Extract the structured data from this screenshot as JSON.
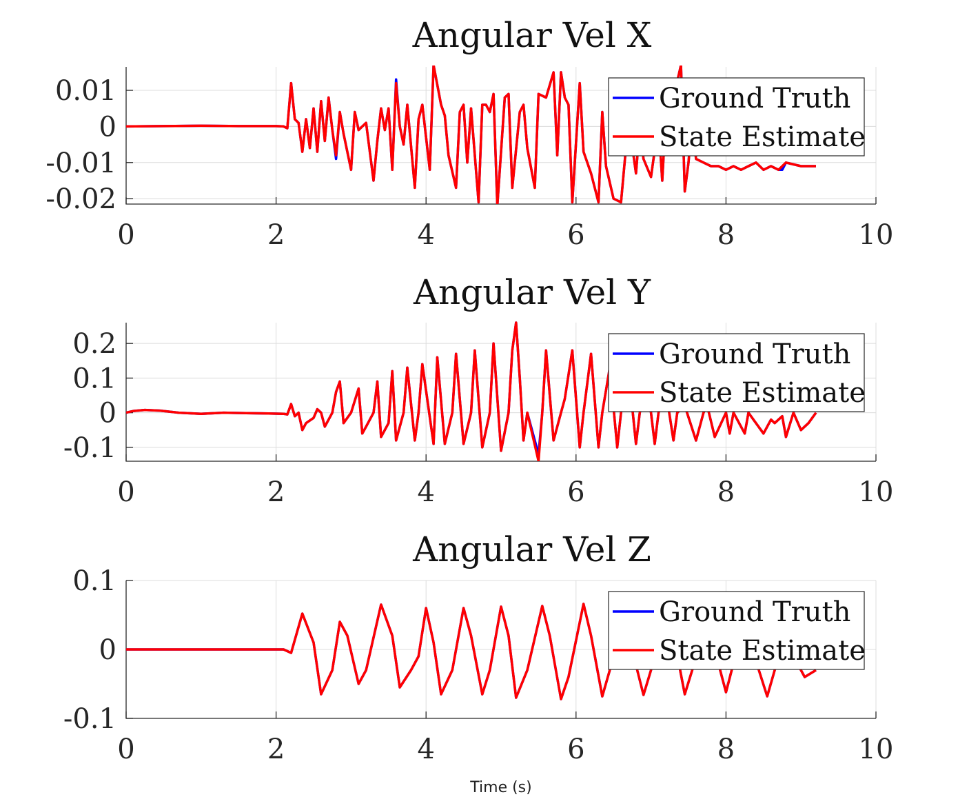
{
  "figure": {
    "xlabel": "Time (s)"
  },
  "colors": {
    "ground_truth": "#0000ff",
    "state_estimate": "#ff0000",
    "grid": "#dcdcdc",
    "axis": "#262626"
  },
  "legend": {
    "items": [
      "Ground Truth",
      "State Estimate"
    ],
    "position": "top-right"
  },
  "chart_data": [
    {
      "type": "line",
      "title": "Angular Vel X",
      "xlim": [
        0,
        10
      ],
      "ylim": [
        -0.0215,
        0.0165
      ],
      "xticks": [
        0,
        2,
        4,
        6,
        8,
        10
      ],
      "xtick_labels": [
        "0",
        "2",
        "4",
        "6",
        "8",
        "10"
      ],
      "yticks": [
        0.01,
        0,
        -0.01,
        -0.02
      ],
      "ytick_labels": [
        "0.01",
        "0",
        "-0.01",
        "-0.02"
      ],
      "grid": true,
      "legend": "top-right",
      "x": [
        0,
        0.5,
        1.0,
        1.5,
        2.0,
        2.1,
        2.15,
        2.2,
        2.25,
        2.3,
        2.35,
        2.4,
        2.45,
        2.5,
        2.55,
        2.6,
        2.65,
        2.7,
        2.75,
        2.8,
        2.85,
        2.9,
        3.0,
        3.05,
        3.1,
        3.15,
        3.2,
        3.3,
        3.35,
        3.4,
        3.45,
        3.5,
        3.55,
        3.6,
        3.65,
        3.7,
        3.75,
        3.85,
        3.9,
        3.95,
        4.05,
        4.1,
        4.2,
        4.25,
        4.3,
        4.4,
        4.45,
        4.5,
        4.55,
        4.6,
        4.7,
        4.75,
        4.8,
        4.85,
        4.9,
        4.95,
        5.05,
        5.1,
        5.15,
        5.25,
        5.3,
        5.35,
        5.45,
        5.5,
        5.6,
        5.7,
        5.75,
        5.8,
        5.85,
        5.9,
        5.95,
        6.05,
        6.1,
        6.2,
        6.3,
        6.35,
        6.4,
        6.5,
        6.6,
        6.7,
        6.8,
        6.85,
        6.9,
        7.0,
        7.1,
        7.15,
        7.2,
        7.3,
        7.4,
        7.45,
        7.5,
        7.55,
        7.6,
        7.7,
        7.8,
        7.9,
        8.0,
        8.1,
        8.2,
        8.3,
        8.4,
        8.5,
        8.6,
        8.7,
        8.75,
        8.8,
        9.0,
        9.2
      ],
      "series": [
        {
          "name": "Ground Truth",
          "values": [
            0,
            0.0001,
            0.0002,
            0.0001,
            0.0001,
            0.0,
            -0.0005,
            0.012,
            0.002,
            0.001,
            -0.007,
            0.002,
            -0.006,
            0.005,
            -0.007,
            0.007,
            -0.004,
            0.008,
            -0.001,
            -0.009,
            0.004,
            -0.002,
            -0.012,
            0.004,
            -0.001,
            0.0,
            0.001,
            -0.015,
            -0.004,
            0.005,
            -0.001,
            0.005,
            -0.012,
            0.013,
            0.0,
            -0.005,
            0.006,
            -0.017,
            0.002,
            0.006,
            -0.012,
            0.017,
            0.006,
            0.003,
            -0.008,
            -0.017,
            0.004,
            0.006,
            -0.01,
            0.005,
            -0.021,
            0.006,
            0.006,
            0.004,
            0.009,
            -0.022,
            0.008,
            0.009,
            -0.017,
            0.004,
            0.006,
            -0.006,
            -0.017,
            0.009,
            0.008,
            0.015,
            -0.008,
            0.015,
            0.008,
            0.006,
            -0.021,
            0.012,
            -0.007,
            -0.013,
            -0.021,
            0.004,
            -0.011,
            -0.02,
            -0.021,
            0.002,
            -0.013,
            0.0,
            -0.009,
            -0.014,
            0.001,
            -0.015,
            0.004,
            0.008,
            0.017,
            -0.018,
            -0.01,
            0.002,
            -0.009,
            -0.01,
            -0.011,
            -0.011,
            -0.012,
            -0.011,
            -0.012,
            -0.011,
            -0.01,
            -0.012,
            -0.011,
            -0.012,
            -0.012,
            -0.01,
            -0.011,
            -0.011
          ]
        },
        {
          "name": "State Estimate",
          "values": [
            0,
            0.0001,
            0.0002,
            0.0001,
            0.0001,
            0.0,
            -0.0005,
            0.012,
            0.002,
            0.001,
            -0.007,
            0.002,
            -0.006,
            0.005,
            -0.007,
            0.007,
            -0.004,
            0.008,
            -0.001,
            -0.008,
            0.004,
            -0.002,
            -0.012,
            0.004,
            -0.001,
            0.0,
            0.001,
            -0.015,
            -0.004,
            0.005,
            -0.001,
            0.005,
            -0.012,
            0.012,
            0.0,
            -0.005,
            0.006,
            -0.017,
            0.002,
            0.006,
            -0.012,
            0.017,
            0.006,
            0.003,
            -0.008,
            -0.017,
            0.004,
            0.006,
            -0.01,
            0.005,
            -0.021,
            0.006,
            0.006,
            0.004,
            0.009,
            -0.022,
            0.008,
            0.009,
            -0.017,
            0.004,
            0.006,
            -0.006,
            -0.017,
            0.009,
            0.008,
            0.015,
            -0.008,
            0.015,
            0.008,
            0.006,
            -0.021,
            0.012,
            -0.007,
            -0.013,
            -0.021,
            0.004,
            -0.011,
            -0.02,
            -0.021,
            0.002,
            -0.013,
            0.0,
            -0.009,
            -0.014,
            0.001,
            -0.015,
            0.004,
            0.008,
            0.017,
            -0.018,
            -0.01,
            0.002,
            -0.009,
            -0.01,
            -0.011,
            -0.011,
            -0.012,
            -0.011,
            -0.012,
            -0.011,
            -0.01,
            -0.012,
            -0.011,
            -0.012,
            -0.011,
            -0.01,
            -0.011,
            -0.011
          ]
        }
      ]
    },
    {
      "type": "line",
      "title": "Angular Vel Y",
      "xlim": [
        0,
        10
      ],
      "ylim": [
        -0.14,
        0.26
      ],
      "xticks": [
        0,
        2,
        4,
        6,
        8,
        10
      ],
      "xtick_labels": [
        "0",
        "2",
        "4",
        "6",
        "8",
        "10"
      ],
      "yticks": [
        0.2,
        0.1,
        0,
        -0.1
      ],
      "ytick_labels": [
        "0.2",
        "0.1",
        "0",
        "-0.1"
      ],
      "grid": true,
      "legend": "top-right",
      "x": [
        0,
        0.1,
        0.25,
        0.45,
        0.7,
        1.0,
        1.3,
        1.6,
        1.9,
        2.1,
        2.15,
        2.2,
        2.25,
        2.3,
        2.35,
        2.4,
        2.5,
        2.55,
        2.6,
        2.65,
        2.7,
        2.75,
        2.8,
        2.85,
        2.9,
        3.0,
        3.1,
        3.15,
        3.2,
        3.3,
        3.35,
        3.4,
        3.5,
        3.55,
        3.6,
        3.7,
        3.75,
        3.85,
        3.9,
        3.95,
        4.1,
        4.15,
        4.25,
        4.35,
        4.4,
        4.5,
        4.6,
        4.65,
        4.75,
        4.85,
        4.9,
        5.0,
        5.1,
        5.15,
        5.2,
        5.25,
        5.3,
        5.35,
        5.5,
        5.55,
        5.6,
        5.7,
        5.8,
        5.85,
        5.95,
        6.05,
        6.1,
        6.2,
        6.3,
        6.35,
        6.45,
        6.55,
        6.6,
        6.7,
        6.8,
        6.85,
        6.95,
        7.05,
        7.1,
        7.2,
        7.3,
        7.35,
        7.45,
        7.6,
        7.7,
        7.75,
        7.85,
        8.0,
        8.05,
        8.1,
        8.25,
        8.3,
        8.5,
        8.6,
        8.65,
        8.75,
        8.8,
        8.9,
        9.0,
        9.1,
        9.2
      ],
      "series": [
        {
          "name": "Ground Truth",
          "values": [
            0.0,
            0.005,
            0.008,
            0.006,
            0.0,
            -0.003,
            0.0,
            -0.001,
            -0.002,
            -0.003,
            -0.005,
            0.025,
            -0.01,
            0.0,
            -0.05,
            -0.03,
            -0.015,
            0.01,
            0.0,
            -0.04,
            -0.02,
            0.0,
            0.06,
            0.09,
            -0.03,
            0.0,
            0.07,
            -0.06,
            -0.04,
            0.0,
            0.09,
            -0.07,
            -0.03,
            0.12,
            -0.08,
            0.0,
            0.13,
            -0.08,
            0.0,
            0.14,
            -0.09,
            0.16,
            -0.09,
            0.0,
            0.17,
            -0.09,
            0.0,
            0.18,
            -0.1,
            0.0,
            0.2,
            -0.11,
            0.0,
            0.18,
            0.26,
            0.1,
            -0.08,
            0.0,
            -0.12,
            0.0,
            0.18,
            -0.08,
            0.0,
            0.04,
            0.18,
            -0.1,
            0.0,
            0.17,
            -0.1,
            0.0,
            0.13,
            -0.1,
            0.0,
            0.12,
            -0.09,
            0.0,
            0.09,
            -0.09,
            0.0,
            0.06,
            -0.08,
            0.0,
            0.02,
            -0.08,
            0.0,
            0.02,
            -0.07,
            0.0,
            -0.06,
            0.0,
            -0.06,
            0.0,
            -0.06,
            -0.02,
            -0.03,
            -0.01,
            -0.07,
            0.0,
            -0.05,
            -0.03,
            0.0
          ]
        },
        {
          "name": "State Estimate",
          "values": [
            0.0,
            0.005,
            0.008,
            0.006,
            0.0,
            -0.003,
            0.0,
            -0.001,
            -0.002,
            -0.003,
            -0.005,
            0.025,
            -0.01,
            0.0,
            -0.05,
            -0.03,
            -0.015,
            0.01,
            0.0,
            -0.04,
            -0.02,
            0.0,
            0.06,
            0.09,
            -0.03,
            0.0,
            0.07,
            -0.06,
            -0.04,
            0.0,
            0.09,
            -0.07,
            -0.03,
            0.12,
            -0.08,
            0.0,
            0.13,
            -0.08,
            0.0,
            0.14,
            -0.09,
            0.16,
            -0.09,
            0.0,
            0.17,
            -0.09,
            0.0,
            0.18,
            -0.1,
            0.0,
            0.2,
            -0.11,
            0.0,
            0.18,
            0.26,
            0.1,
            -0.08,
            0.0,
            -0.14,
            0.0,
            0.18,
            -0.08,
            0.0,
            0.04,
            0.18,
            -0.1,
            0.0,
            0.17,
            -0.1,
            0.0,
            0.13,
            -0.1,
            0.0,
            0.12,
            -0.09,
            0.0,
            0.09,
            -0.09,
            0.0,
            0.06,
            -0.08,
            0.0,
            0.02,
            -0.08,
            0.0,
            0.02,
            -0.07,
            0.0,
            -0.06,
            0.0,
            -0.06,
            0.0,
            -0.06,
            -0.02,
            -0.03,
            -0.01,
            -0.07,
            0.0,
            -0.05,
            -0.03,
            0.0
          ]
        }
      ]
    },
    {
      "type": "line",
      "title": "Angular Vel Z",
      "xlim": [
        0,
        10
      ],
      "ylim": [
        -0.1,
        0.1
      ],
      "xticks": [
        0,
        2,
        4,
        6,
        8,
        10
      ],
      "xtick_labels": [
        "0",
        "2",
        "4",
        "6",
        "8",
        "10"
      ],
      "yticks": [
        0.1,
        0,
        -0.1
      ],
      "ytick_labels": [
        "0.1",
        "0",
        "-0.1"
      ],
      "grid": true,
      "legend": "top-right",
      "x": [
        0,
        1.0,
        2.0,
        2.1,
        2.2,
        2.35,
        2.5,
        2.6,
        2.75,
        2.85,
        2.95,
        3.1,
        3.2,
        3.4,
        3.55,
        3.65,
        3.8,
        3.9,
        4.0,
        4.1,
        4.2,
        4.35,
        4.5,
        4.6,
        4.75,
        4.85,
        5.0,
        5.1,
        5.2,
        5.35,
        5.55,
        5.65,
        5.8,
        5.9,
        6.1,
        6.2,
        6.35,
        6.45,
        6.6,
        6.7,
        6.9,
        7.0,
        7.2,
        7.3,
        7.45,
        7.55,
        7.7,
        7.8,
        8.0,
        8.1,
        8.25,
        8.35,
        8.55,
        8.65,
        8.8,
        9.05,
        9.2
      ],
      "series": [
        {
          "name": "Ground Truth",
          "values": [
            0,
            0,
            0,
            0,
            -0.005,
            0.052,
            0.01,
            -0.065,
            -0.03,
            0.04,
            0.02,
            -0.05,
            -0.03,
            0.065,
            0.02,
            -0.055,
            -0.03,
            -0.01,
            0.06,
            0.01,
            -0.065,
            -0.03,
            0.06,
            0.02,
            -0.065,
            -0.03,
            0.062,
            0.02,
            -0.07,
            -0.03,
            0.063,
            0.02,
            -0.072,
            -0.04,
            0.066,
            0.02,
            -0.068,
            -0.03,
            0.065,
            0.02,
            -0.066,
            -0.03,
            0.06,
            0.02,
            -0.065,
            -0.03,
            0.055,
            0.02,
            -0.062,
            -0.02,
            0.05,
            0.0,
            -0.068,
            -0.03,
            0.01,
            -0.04,
            -0.03
          ]
        },
        {
          "name": "State Estimate",
          "values": [
            0,
            0,
            0,
            0,
            -0.005,
            0.052,
            0.01,
            -0.065,
            -0.03,
            0.04,
            0.02,
            -0.05,
            -0.03,
            0.065,
            0.02,
            -0.055,
            -0.03,
            -0.01,
            0.06,
            0.01,
            -0.065,
            -0.03,
            0.06,
            0.02,
            -0.065,
            -0.03,
            0.062,
            0.02,
            -0.07,
            -0.03,
            0.063,
            0.02,
            -0.072,
            -0.04,
            0.066,
            0.02,
            -0.068,
            -0.03,
            0.065,
            0.02,
            -0.066,
            -0.03,
            0.06,
            0.02,
            -0.065,
            -0.03,
            0.055,
            0.02,
            -0.062,
            -0.02,
            0.05,
            0.0,
            -0.068,
            -0.03,
            0.01,
            -0.04,
            -0.03
          ]
        }
      ]
    }
  ]
}
